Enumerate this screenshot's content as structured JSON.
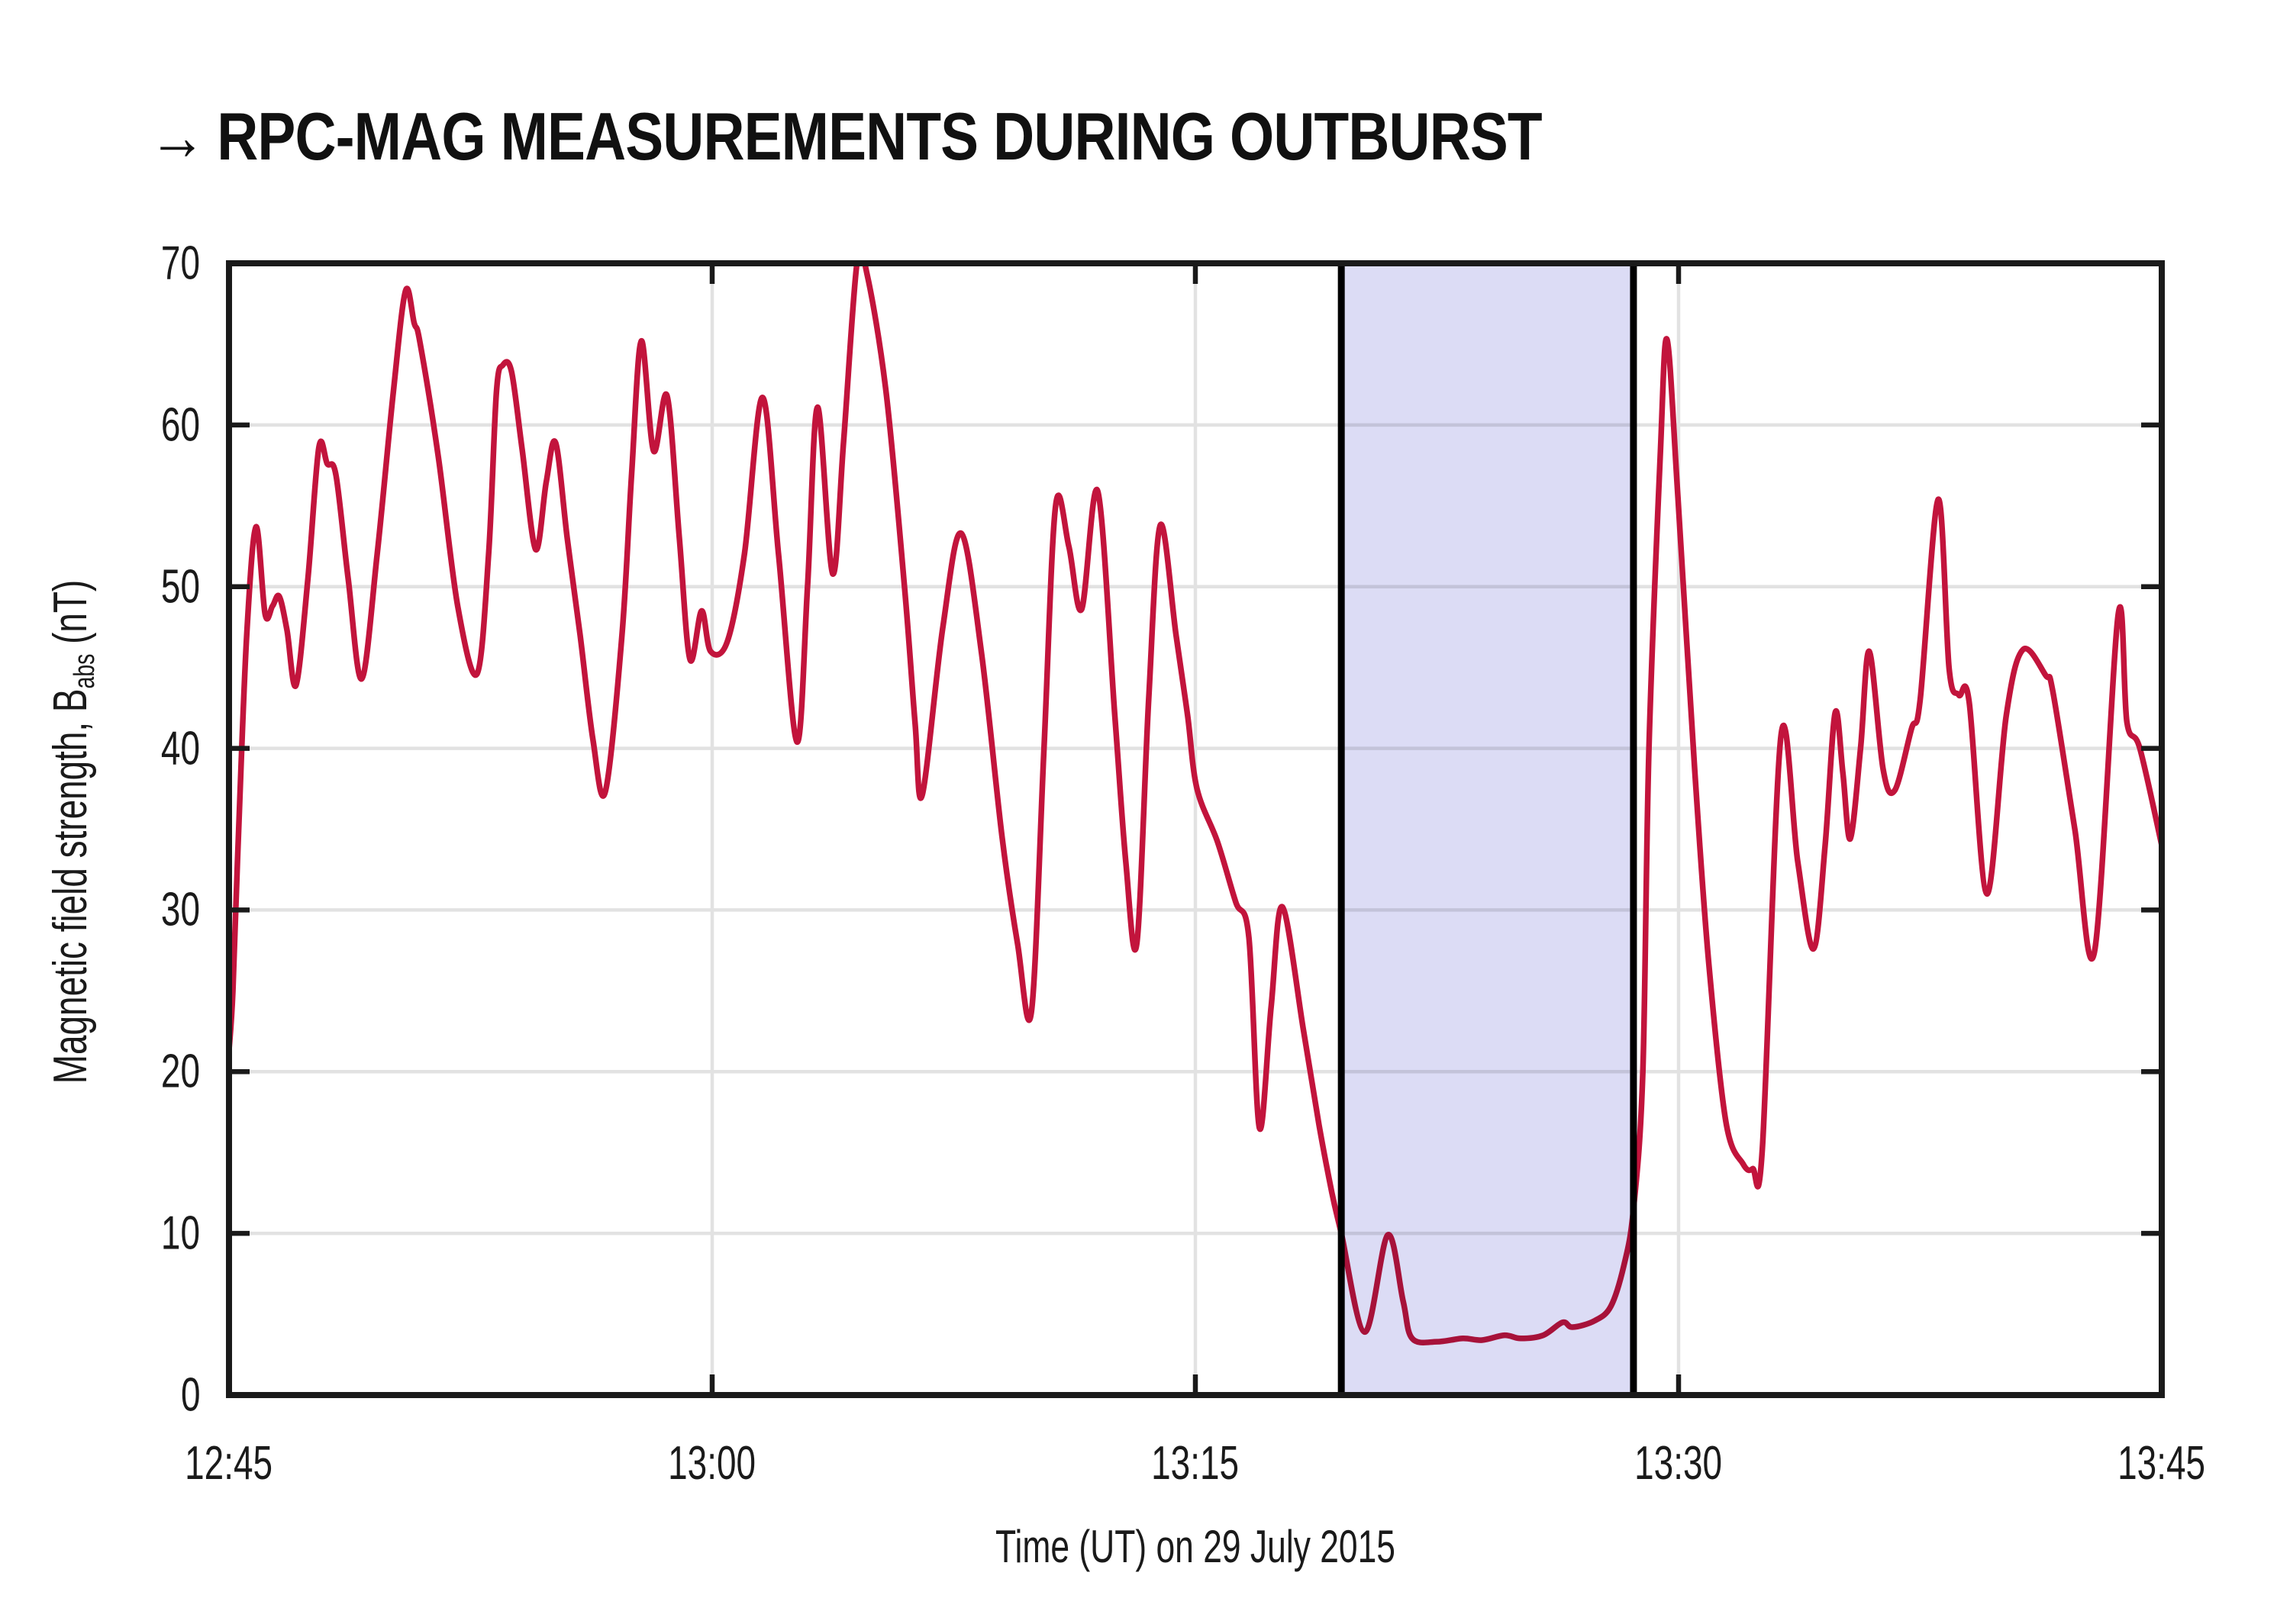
{
  "title": {
    "arrow": "→",
    "text": "RPC-MAG MEASUREMENTS DURING OUTBURST"
  },
  "axes": {
    "x_label": "Time (UT) on 29 July 2015",
    "y_label_main": "Magnetic field strength, B",
    "y_label_sub": "abs",
    "y_label_unit": " (nT)"
  },
  "chart_data": {
    "type": "line",
    "title": "RPC-MAG MEASUREMENTS DURING OUTBURST",
    "xlabel": "Time (UT) on 29 July 2015",
    "ylabel": "Magnetic field strength, B_abs (nT)",
    "xlim": [
      "12:45",
      "13:45"
    ],
    "ylim": [
      0,
      70
    ],
    "grid": "on",
    "x_ticks": [
      "12:45",
      "13:00",
      "13:15",
      "13:30",
      "13:45"
    ],
    "x_tick_minutes": [
      0,
      15,
      30,
      45,
      60
    ],
    "y_ticks": [
      70,
      60,
      50,
      40,
      30,
      20,
      10,
      0
    ],
    "y_grid_values": [
      10,
      20,
      30,
      40,
      50,
      60
    ],
    "x_grid_minutes": [
      15,
      30,
      45
    ],
    "shaded_region": {
      "start_minutes_after_1245": 34.53,
      "end_minutes_after_1245": 43.6,
      "fill": "#dcdcf5",
      "border_color": "#000000"
    },
    "series": [
      {
        "name": "B_abs",
        "color": "#c2143c",
        "points_minutes_nT": [
          [
            0,
            21.3
          ],
          [
            0.12,
            25
          ],
          [
            0.3,
            35
          ],
          [
            0.55,
            47
          ],
          [
            0.84,
            53.7
          ],
          [
            1.12,
            48.3
          ],
          [
            1.35,
            48.8
          ],
          [
            1.56,
            49.4
          ],
          [
            1.8,
            47.3
          ],
          [
            2.08,
            43.9
          ],
          [
            2.45,
            50.5
          ],
          [
            2.79,
            58.6
          ],
          [
            3.05,
            57.6
          ],
          [
            3.32,
            56.9
          ],
          [
            3.7,
            50.5
          ],
          [
            4.12,
            44.3
          ],
          [
            4.6,
            52
          ],
          [
            5.1,
            62
          ],
          [
            5.48,
            68.3
          ],
          [
            5.75,
            66.3
          ],
          [
            5.93,
            65.1
          ],
          [
            6.5,
            58
          ],
          [
            7.1,
            48.8
          ],
          [
            7.7,
            44.6
          ],
          [
            8.06,
            52
          ],
          [
            8.3,
            62
          ],
          [
            8.5,
            63.7
          ],
          [
            8.77,
            63.3
          ],
          [
            9.1,
            58.5
          ],
          [
            9.52,
            52.3
          ],
          [
            9.85,
            56.5
          ],
          [
            10.14,
            58.9
          ],
          [
            10.5,
            53
          ],
          [
            10.9,
            47
          ],
          [
            11.3,
            40.5
          ],
          [
            11.68,
            37.3
          ],
          [
            12.2,
            47
          ],
          [
            12.5,
            57
          ],
          [
            12.8,
            65.2
          ],
          [
            13.18,
            58.4
          ],
          [
            13.6,
            61.8
          ],
          [
            13.98,
            53
          ],
          [
            14.31,
            45.5
          ],
          [
            14.67,
            48.5
          ],
          [
            14.95,
            46
          ],
          [
            15.47,
            46.6
          ],
          [
            16,
            52
          ],
          [
            16.56,
            61.7
          ],
          [
            17.06,
            52
          ],
          [
            17.63,
            40.4
          ],
          [
            17.96,
            50
          ],
          [
            18.27,
            61.1
          ],
          [
            18.74,
            50.8
          ],
          [
            19.08,
            59
          ],
          [
            19.5,
            70.1
          ],
          [
            19.81,
            69.3
          ],
          [
            20.4,
            62
          ],
          [
            20.97,
            50
          ],
          [
            21.3,
            41.5
          ],
          [
            21.52,
            37.1
          ],
          [
            22.16,
            47.5
          ],
          [
            22.73,
            53.3
          ],
          [
            23.36,
            45.9
          ],
          [
            24,
            34.5
          ],
          [
            24.48,
            27.9
          ],
          [
            24.91,
            23.7
          ],
          [
            25.3,
            40
          ],
          [
            25.66,
            55
          ],
          [
            26.07,
            52.5
          ],
          [
            26.47,
            48.6
          ],
          [
            26.97,
            55.9
          ],
          [
            27.5,
            42
          ],
          [
            27.84,
            33
          ],
          [
            28.18,
            27.9
          ],
          [
            28.55,
            43
          ],
          [
            28.91,
            53.8
          ],
          [
            29.4,
            47
          ],
          [
            29.76,
            42
          ],
          [
            30.05,
            37.5
          ],
          [
            30.69,
            34.2
          ],
          [
            31.25,
            30.5
          ],
          [
            31.66,
            28.3
          ],
          [
            31.99,
            16.5
          ],
          [
            32.35,
            24
          ],
          [
            32.7,
            30.2
          ],
          [
            33.36,
            22.5
          ],
          [
            33.84,
            16.7
          ],
          [
            34.24,
            12.5
          ],
          [
            34.53,
            10
          ],
          [
            35.26,
            3.9
          ],
          [
            35.97,
            9.9
          ],
          [
            36.45,
            5.8
          ],
          [
            36.73,
            3.5
          ],
          [
            37.5,
            3.3
          ],
          [
            38.3,
            3.5
          ],
          [
            38.9,
            3.4
          ],
          [
            39.6,
            3.7
          ],
          [
            40.1,
            3.5
          ],
          [
            40.8,
            3.7
          ],
          [
            41.4,
            4.5
          ],
          [
            41.71,
            4.2
          ],
          [
            42.4,
            4.6
          ],
          [
            42.9,
            5.5
          ],
          [
            43.3,
            8
          ],
          [
            43.6,
            11.5
          ],
          [
            43.89,
            20
          ],
          [
            44.08,
            40
          ],
          [
            44.43,
            58
          ],
          [
            44.64,
            65.3
          ],
          [
            44.98,
            55.5
          ],
          [
            45.5,
            38.7
          ],
          [
            45.93,
            26.9
          ],
          [
            46.47,
            16.9
          ],
          [
            47,
            14.3
          ],
          [
            47.3,
            14
          ],
          [
            47.6,
            15.2
          ],
          [
            48.18,
            40.8
          ],
          [
            48.7,
            33
          ],
          [
            49.19,
            27.6
          ],
          [
            49.55,
            34
          ],
          [
            49.86,
            42.2
          ],
          [
            50.1,
            38.5
          ],
          [
            50.33,
            34.4
          ],
          [
            50.65,
            40
          ],
          [
            50.92,
            46
          ],
          [
            51.35,
            38.7
          ],
          [
            51.71,
            37.4
          ],
          [
            52.23,
            41.2
          ],
          [
            52.5,
            43
          ],
          [
            53.06,
            55.4
          ],
          [
            53.4,
            44.9
          ],
          [
            53.7,
            43.3
          ],
          [
            54.02,
            42.9
          ],
          [
            54.57,
            31
          ],
          [
            55.17,
            42
          ],
          [
            55.69,
            46.1
          ],
          [
            56.4,
            44.5
          ],
          [
            56.62,
            43.5
          ],
          [
            57.3,
            35
          ],
          [
            57.91,
            27.4
          ],
          [
            58.65,
            48.3
          ],
          [
            58.92,
            41.6
          ],
          [
            59.32,
            40
          ],
          [
            60,
            34
          ]
        ]
      }
    ]
  },
  "colors": {
    "line": "#c2143c",
    "grid": "#e2e2e2",
    "frame": "#1a1a1a",
    "shade_fill": "#dcdcf5",
    "shade_border": "#000000",
    "background": "#ffffff"
  }
}
